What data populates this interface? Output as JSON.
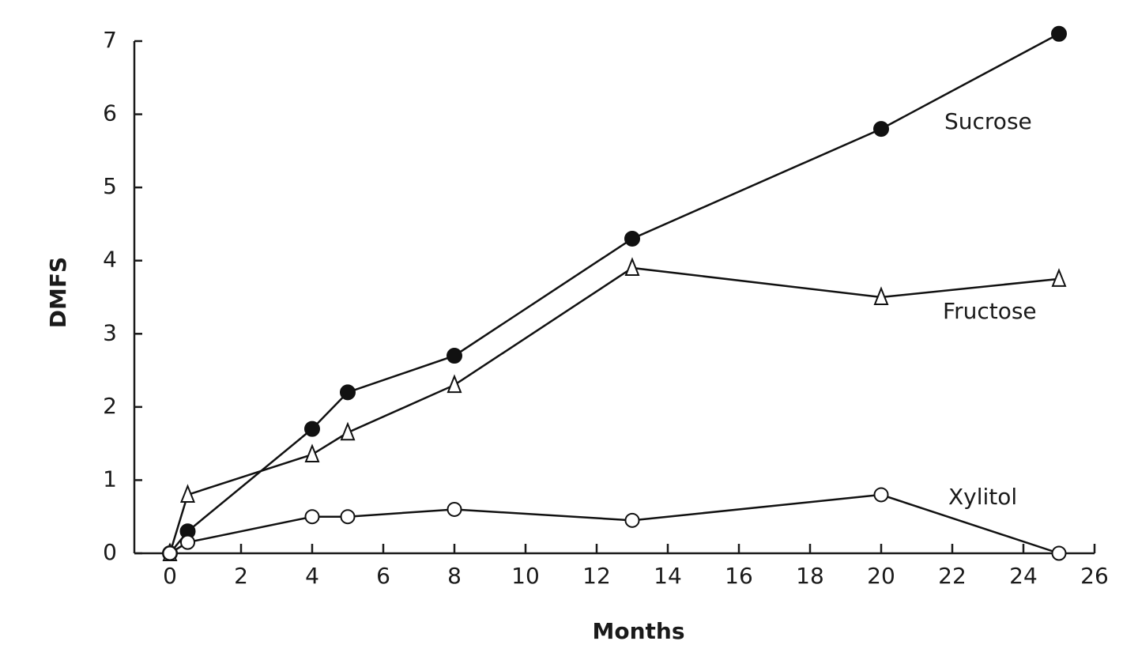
{
  "chart_data": {
    "type": "line",
    "x_label": "Months",
    "y_label": "DMFS",
    "x": [
      0,
      0.5,
      4,
      5,
      8,
      13,
      20,
      25
    ],
    "series": [
      {
        "name": "Sucrose",
        "color": "#111111",
        "marker": "filled-circle",
        "values": [
          0,
          0.3,
          1.7,
          2.2,
          2.7,
          4.3,
          5.8,
          7.1
        ]
      },
      {
        "name": "Fructose",
        "color": "#111111",
        "marker": "open-triangle",
        "values": [
          0,
          0.8,
          1.35,
          1.65,
          2.3,
          3.9,
          3.5,
          3.75
        ]
      },
      {
        "name": "Xylitol",
        "color": "#111111",
        "marker": "open-circle",
        "values": [
          0,
          0.15,
          0.5,
          0.5,
          0.6,
          0.45,
          0.8,
          0
        ]
      }
    ],
    "xlim": [
      -1,
      26
    ],
    "xticks": [
      0,
      2,
      4,
      6,
      8,
      10,
      12,
      14,
      16,
      18,
      20,
      22,
      24,
      26
    ],
    "ylim": [
      0,
      7
    ],
    "yticks": [
      0,
      1,
      2,
      3,
      4,
      5,
      6,
      7
    ],
    "grid": false
  }
}
